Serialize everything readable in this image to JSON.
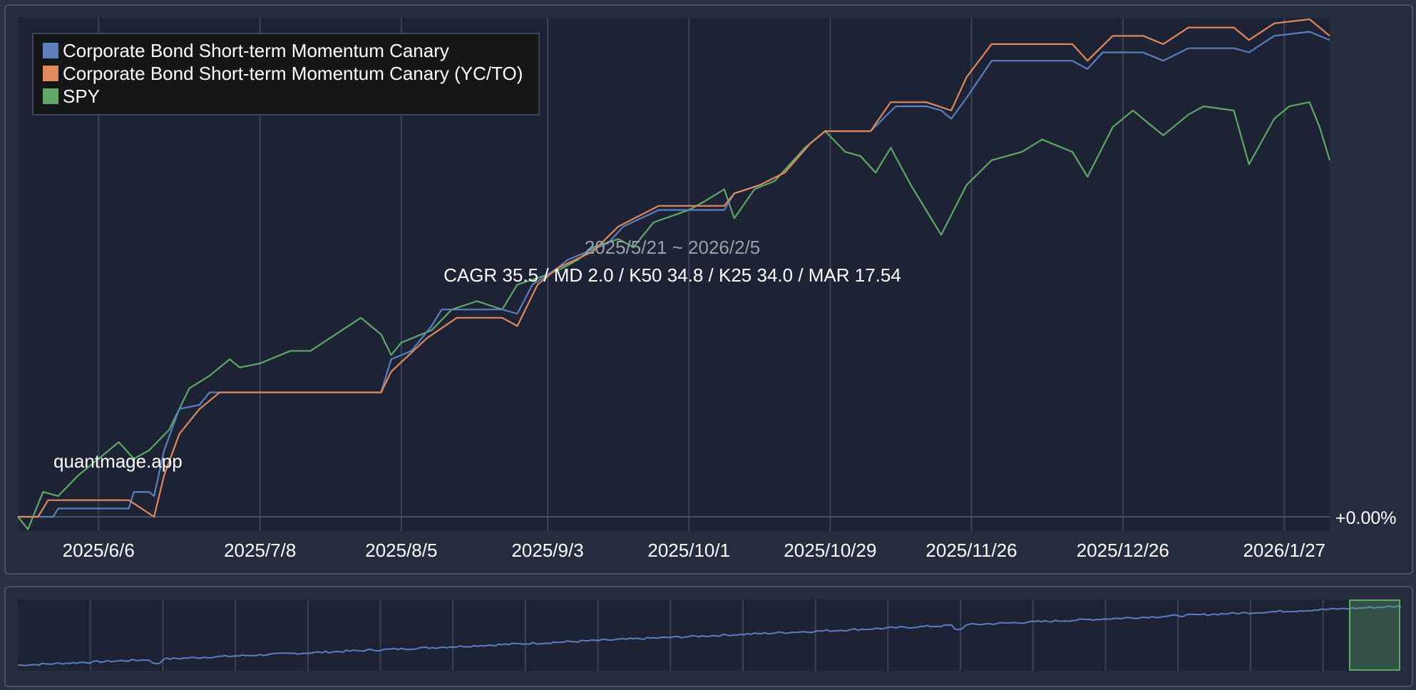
{
  "chart_data": {
    "type": "line",
    "title": "",
    "xlabel": "",
    "ylabel": "",
    "grid": true,
    "legend_position": "top-left",
    "x_ticks": [
      "2025/6/6",
      "2025/7/8",
      "2025/8/5",
      "2025/9/3",
      "2025/10/1",
      "2025/10/29",
      "2025/11/26",
      "2025/12/26",
      "2026/1/27"
    ],
    "y_tick_label": "+0.00%",
    "date_range": [
      "2025-05-21",
      "2026-02-05"
    ],
    "annotation_period": "2025/5/21 ~ 2026/2/5",
    "annotation_stats": "CAGR 35.5 / MD 2.0 / K50 34.8 / K25 34.0 / MAR 17.54",
    "watermark": "quantmage.app",
    "series": [
      {
        "name": "Corporate Bond Short-term Momentum Canary",
        "color": "#5b7fbf",
        "points": [
          [
            "2025-05-21",
            0
          ],
          [
            "2025-05-28",
            0
          ],
          [
            "2025-05-29",
            0.2
          ],
          [
            "2025-06-12",
            0.2
          ],
          [
            "2025-06-13",
            0.6
          ],
          [
            "2025-06-16",
            0.6
          ],
          [
            "2025-06-17",
            0.5
          ],
          [
            "2025-06-19",
            1.6
          ],
          [
            "2025-06-22",
            2.6
          ],
          [
            "2025-06-26",
            2.7
          ],
          [
            "2025-06-28",
            3.0
          ],
          [
            "2025-07-02",
            3.0
          ],
          [
            "2025-08-01",
            3.0
          ],
          [
            "2025-08-03",
            3.8
          ],
          [
            "2025-08-07",
            4.0
          ],
          [
            "2025-08-11",
            4.6
          ],
          [
            "2025-08-13",
            5.0
          ],
          [
            "2025-08-25",
            5.0
          ],
          [
            "2025-08-28",
            4.9
          ],
          [
            "2025-08-31",
            5.6
          ],
          [
            "2025-09-05",
            6.0
          ],
          [
            "2025-09-07",
            6.2
          ],
          [
            "2025-09-15",
            6.6
          ],
          [
            "2025-09-18",
            7.0
          ],
          [
            "2025-09-25",
            7.4
          ],
          [
            "2025-10-01",
            7.4
          ],
          [
            "2025-10-08",
            7.4
          ],
          [
            "2025-10-10",
            7.8
          ],
          [
            "2025-10-15",
            8.0
          ],
          [
            "2025-10-20",
            8.3
          ],
          [
            "2025-10-25",
            9.0
          ],
          [
            "2025-10-28",
            9.3
          ],
          [
            "2025-11-01",
            9.3
          ],
          [
            "2025-11-06",
            9.3
          ],
          [
            "2025-11-11",
            9.9
          ],
          [
            "2025-11-17",
            9.9
          ],
          [
            "2025-11-20",
            9.8
          ],
          [
            "2025-11-22",
            9.6
          ],
          [
            "2025-11-25",
            10.1
          ],
          [
            "2025-11-30",
            11.0
          ],
          [
            "2025-12-06",
            11.0
          ],
          [
            "2025-12-16",
            11.0
          ],
          [
            "2025-12-19",
            10.8
          ],
          [
            "2025-12-22",
            11.2
          ],
          [
            "2025-12-30",
            11.2
          ],
          [
            "2026-01-03",
            11.0
          ],
          [
            "2026-01-08",
            11.3
          ],
          [
            "2026-01-17",
            11.3
          ],
          [
            "2026-01-20",
            11.2
          ],
          [
            "2026-01-25",
            11.6
          ],
          [
            "2026-02-01",
            11.7
          ],
          [
            "2026-02-05",
            11.5
          ]
        ]
      },
      {
        "name": "Corporate Bond Short-term Momentum Canary (YC/TO)",
        "color": "#e08a5c",
        "points": [
          [
            "2025-05-21",
            0
          ],
          [
            "2025-05-25",
            0
          ],
          [
            "2025-05-27",
            0.4
          ],
          [
            "2025-06-12",
            0.4
          ],
          [
            "2025-06-17",
            0
          ],
          [
            "2025-06-19",
            1.0
          ],
          [
            "2025-06-22",
            2.0
          ],
          [
            "2025-06-26",
            2.6
          ],
          [
            "2025-06-30",
            3.0
          ],
          [
            "2025-07-02",
            3.0
          ],
          [
            "2025-08-01",
            3.0
          ],
          [
            "2025-08-03",
            3.5
          ],
          [
            "2025-08-10",
            4.3
          ],
          [
            "2025-08-16",
            4.8
          ],
          [
            "2025-08-25",
            4.8
          ],
          [
            "2025-08-28",
            4.6
          ],
          [
            "2025-09-01",
            5.6
          ],
          [
            "2025-09-05",
            6.0
          ],
          [
            "2025-09-12",
            6.4
          ],
          [
            "2025-09-17",
            7.0
          ],
          [
            "2025-09-25",
            7.5
          ],
          [
            "2025-10-01",
            7.5
          ],
          [
            "2025-10-08",
            7.5
          ],
          [
            "2025-10-10",
            7.8
          ],
          [
            "2025-10-15",
            8.0
          ],
          [
            "2025-10-20",
            8.3
          ],
          [
            "2025-10-25",
            9.0
          ],
          [
            "2025-10-28",
            9.3
          ],
          [
            "2025-11-01",
            9.3
          ],
          [
            "2025-11-06",
            9.3
          ],
          [
            "2025-11-10",
            10.0
          ],
          [
            "2025-11-17",
            10.0
          ],
          [
            "2025-11-22",
            9.8
          ],
          [
            "2025-11-25",
            10.6
          ],
          [
            "2025-11-30",
            11.4
          ],
          [
            "2025-12-06",
            11.4
          ],
          [
            "2025-12-16",
            11.4
          ],
          [
            "2025-12-19",
            11.0
          ],
          [
            "2025-12-24",
            11.6
          ],
          [
            "2025-12-30",
            11.6
          ],
          [
            "2026-01-03",
            11.4
          ],
          [
            "2026-01-08",
            11.8
          ],
          [
            "2026-01-17",
            11.8
          ],
          [
            "2026-01-20",
            11.5
          ],
          [
            "2026-01-25",
            11.9
          ],
          [
            "2026-02-01",
            12.0
          ],
          [
            "2026-02-05",
            11.6
          ]
        ]
      },
      {
        "name": "SPY",
        "color": "#5fa867",
        "points": [
          [
            "2025-05-21",
            0
          ],
          [
            "2025-05-23",
            -0.3
          ],
          [
            "2025-05-26",
            0.6
          ],
          [
            "2025-05-29",
            0.5
          ],
          [
            "2025-06-02",
            1.0
          ],
          [
            "2025-06-06",
            1.4
          ],
          [
            "2025-06-10",
            1.8
          ],
          [
            "2025-06-13",
            1.4
          ],
          [
            "2025-06-16",
            1.6
          ],
          [
            "2025-06-20",
            2.1
          ],
          [
            "2025-06-24",
            3.1
          ],
          [
            "2025-06-28",
            3.4
          ],
          [
            "2025-07-02",
            3.8
          ],
          [
            "2025-07-04",
            3.6
          ],
          [
            "2025-07-08",
            3.7
          ],
          [
            "2025-07-14",
            4.0
          ],
          [
            "2025-07-18",
            4.0
          ],
          [
            "2025-07-23",
            4.4
          ],
          [
            "2025-07-28",
            4.8
          ],
          [
            "2025-08-01",
            4.4
          ],
          [
            "2025-08-03",
            3.9
          ],
          [
            "2025-08-05",
            4.2
          ],
          [
            "2025-08-11",
            4.5
          ],
          [
            "2025-08-15",
            5.0
          ],
          [
            "2025-08-20",
            5.2
          ],
          [
            "2025-08-25",
            5.0
          ],
          [
            "2025-08-28",
            5.6
          ],
          [
            "2025-09-02",
            5.8
          ],
          [
            "2025-09-06",
            6.0
          ],
          [
            "2025-09-09",
            6.2
          ],
          [
            "2025-09-12",
            6.5
          ],
          [
            "2025-09-17",
            6.7
          ],
          [
            "2025-09-20",
            6.5
          ],
          [
            "2025-09-24",
            7.1
          ],
          [
            "2025-10-01",
            7.4
          ],
          [
            "2025-10-04",
            7.6
          ],
          [
            "2025-10-08",
            7.9
          ],
          [
            "2025-10-10",
            7.2
          ],
          [
            "2025-10-14",
            7.9
          ],
          [
            "2025-10-18",
            8.1
          ],
          [
            "2025-10-24",
            8.9
          ],
          [
            "2025-10-28",
            9.3
          ],
          [
            "2025-11-01",
            8.8
          ],
          [
            "2025-11-04",
            8.7
          ],
          [
            "2025-11-07",
            8.3
          ],
          [
            "2025-11-10",
            8.9
          ],
          [
            "2025-11-14",
            8.0
          ],
          [
            "2025-11-17",
            7.4
          ],
          [
            "2025-11-20",
            6.8
          ],
          [
            "2025-11-25",
            8.0
          ],
          [
            "2025-11-30",
            8.6
          ],
          [
            "2025-12-06",
            8.8
          ],
          [
            "2025-12-10",
            9.1
          ],
          [
            "2025-12-16",
            8.8
          ],
          [
            "2025-12-19",
            8.2
          ],
          [
            "2025-12-24",
            9.4
          ],
          [
            "2025-12-28",
            9.8
          ],
          [
            "2026-01-03",
            9.2
          ],
          [
            "2026-01-08",
            9.7
          ],
          [
            "2026-01-11",
            9.9
          ],
          [
            "2026-01-17",
            9.8
          ],
          [
            "2026-01-20",
            8.5
          ],
          [
            "2026-01-25",
            9.6
          ],
          [
            "2026-01-28",
            9.9
          ],
          [
            "2026-02-01",
            10.0
          ],
          [
            "2026-02-03",
            9.4
          ],
          [
            "2026-02-05",
            8.6
          ]
        ]
      }
    ],
    "navigator": {
      "y_range": [
        0,
        100
      ]
    }
  }
}
